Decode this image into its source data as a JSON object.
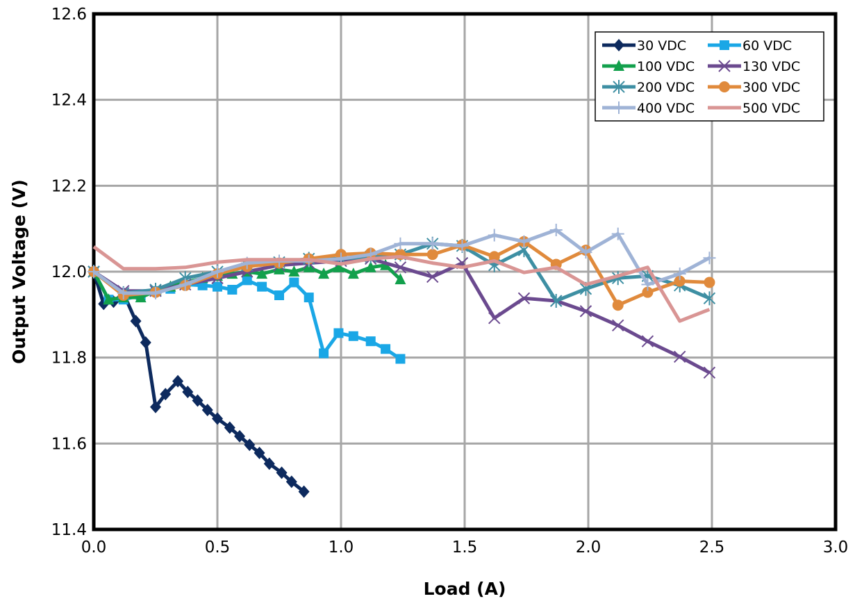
{
  "chart_data": {
    "type": "line",
    "title": "",
    "xlabel": "Load (A)",
    "ylabel": "Output Voltage (V)",
    "xlim": [
      0.0,
      3.0
    ],
    "ylim": [
      11.4,
      12.6
    ],
    "xticks": [
      "0.0",
      "0.5",
      "1.0",
      "1.5",
      "2.0",
      "2.5",
      "3.0"
    ],
    "yticks": [
      "11.4",
      "11.6",
      "11.8",
      "12.0",
      "12.2",
      "12.4",
      "12.6"
    ],
    "grid": true,
    "legend_position": "top-right",
    "series": [
      {
        "name": "30 VDC",
        "color": "#0d2a5e",
        "marker": "diamond",
        "x": [
          0,
          0.04,
          0.08,
          0.12,
          0.17,
          0.21,
          0.25,
          0.29,
          0.34,
          0.38,
          0.42,
          0.46,
          0.5,
          0.55,
          0.59,
          0.63,
          0.67,
          0.71,
          0.76,
          0.8,
          0.85
        ],
        "y": [
          12.0,
          11.925,
          11.93,
          11.95,
          11.885,
          11.835,
          11.685,
          11.715,
          11.745,
          11.72,
          11.7,
          11.678,
          11.658,
          11.637,
          11.617,
          11.597,
          11.578,
          11.553,
          11.532,
          11.511,
          11.488
        ]
      },
      {
        "name": "60 VDC",
        "color": "#1aa7e6",
        "marker": "square",
        "x": [
          0,
          0.06,
          0.12,
          0.19,
          0.25,
          0.31,
          0.37,
          0.44,
          0.5,
          0.56,
          0.62,
          0.68,
          0.75,
          0.81,
          0.87,
          0.93,
          0.99,
          1.05,
          1.12,
          1.18,
          1.24
        ],
        "y": [
          12.0,
          11.935,
          11.935,
          11.945,
          11.955,
          11.96,
          11.97,
          11.968,
          11.965,
          11.958,
          11.98,
          11.965,
          11.945,
          11.975,
          11.94,
          11.81,
          11.857,
          11.85,
          11.838,
          11.82,
          11.797
        ]
      },
      {
        "name": "100 VDC",
        "color": "#12a04c",
        "marker": "triangle",
        "x": [
          0,
          0.06,
          0.12,
          0.19,
          0.25,
          0.31,
          0.37,
          0.44,
          0.5,
          0.56,
          0.62,
          0.68,
          0.75,
          0.81,
          0.87,
          0.93,
          0.99,
          1.05,
          1.12,
          1.18,
          1.24
        ],
        "y": [
          12.0,
          11.935,
          11.94,
          11.94,
          11.955,
          11.965,
          11.975,
          11.985,
          11.99,
          11.995,
          12.0,
          11.995,
          12.005,
          12.0,
          12.01,
          11.995,
          12.01,
          11.995,
          12.01,
          12.015,
          11.982
        ]
      },
      {
        "name": "130 VDC",
        "color": "#6b4a8f",
        "marker": "x",
        "x": [
          0,
          0.12,
          0.25,
          0.37,
          0.5,
          0.62,
          0.75,
          0.87,
          1.0,
          1.12,
          1.24,
          1.37,
          1.49,
          1.62,
          1.74,
          1.87,
          1.99,
          2.12,
          2.24,
          2.37,
          2.49
        ],
        "y": [
          12.0,
          11.955,
          11.955,
          11.97,
          11.985,
          12.0,
          12.015,
          12.02,
          12.025,
          12.03,
          12.01,
          11.988,
          12.02,
          11.892,
          11.938,
          11.932,
          11.908,
          11.875,
          11.838,
          11.802,
          11.765
        ]
      },
      {
        "name": "200 VDC",
        "color": "#3e8fa3",
        "marker": "star",
        "x": [
          0,
          0.12,
          0.25,
          0.37,
          0.5,
          0.62,
          0.75,
          0.87,
          1.0,
          1.12,
          1.24,
          1.37,
          1.49,
          1.62,
          1.74,
          1.87,
          1.99,
          2.12,
          2.24,
          2.37,
          2.49
        ],
        "y": [
          12.0,
          11.95,
          11.958,
          11.985,
          12.0,
          12.015,
          12.022,
          12.03,
          12.03,
          12.035,
          12.04,
          12.065,
          12.06,
          12.015,
          12.05,
          11.932,
          11.96,
          11.985,
          11.99,
          11.968,
          11.938
        ]
      },
      {
        "name": "300 VDC",
        "color": "#e08a3c",
        "marker": "circle",
        "x": [
          0,
          0.12,
          0.25,
          0.37,
          0.5,
          0.62,
          0.75,
          0.87,
          1.0,
          1.12,
          1.24,
          1.37,
          1.49,
          1.62,
          1.74,
          1.87,
          1.99,
          2.12,
          2.24,
          2.37,
          2.49
        ],
        "y": [
          12.0,
          11.945,
          11.952,
          11.968,
          11.995,
          12.012,
          12.02,
          12.03,
          12.04,
          12.043,
          12.04,
          12.04,
          12.062,
          12.035,
          12.07,
          12.017,
          12.05,
          11.922,
          11.952,
          11.978,
          11.975
        ]
      },
      {
        "name": "400 VDC",
        "color": "#9fb3d6",
        "marker": "plus",
        "x": [
          0,
          0.12,
          0.25,
          0.37,
          0.5,
          0.62,
          0.75,
          0.87,
          1.0,
          1.12,
          1.24,
          1.37,
          1.49,
          1.62,
          1.74,
          1.87,
          1.99,
          2.12,
          2.24,
          2.37,
          2.49
        ],
        "y": [
          12.0,
          11.95,
          11.95,
          11.97,
          12.0,
          12.02,
          12.025,
          12.025,
          12.03,
          12.04,
          12.065,
          12.065,
          12.06,
          12.085,
          12.07,
          12.097,
          12.045,
          12.088,
          11.97,
          11.995,
          12.032
        ]
      },
      {
        "name": "500 VDC",
        "color": "#d99594",
        "marker": "none",
        "x": [
          0,
          0.12,
          0.25,
          0.37,
          0.5,
          0.62,
          0.75,
          0.87,
          1.0,
          1.12,
          1.24,
          1.37,
          1.49,
          1.62,
          1.74,
          1.87,
          1.99,
          2.12,
          2.24,
          2.37,
          2.49
        ],
        "y": [
          12.058,
          12.007,
          12.007,
          12.01,
          12.022,
          12.028,
          12.028,
          12.028,
          12.018,
          12.03,
          12.035,
          12.02,
          12.01,
          12.025,
          11.998,
          12.01,
          11.97,
          11.99,
          12.01,
          11.885,
          11.912
        ]
      }
    ]
  }
}
